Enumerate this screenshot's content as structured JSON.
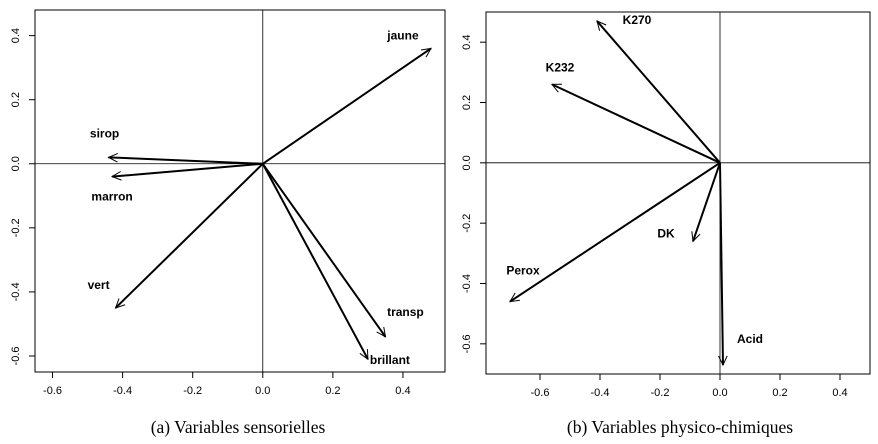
{
  "chart_data": [
    {
      "type": "vector-plot",
      "caption": "(a)  Variables sensorielles",
      "xlim": [
        -0.65,
        0.52
      ],
      "ylim": [
        -0.65,
        0.48
      ],
      "xticks": [
        -0.6,
        -0.4,
        -0.2,
        0.0,
        0.2,
        0.4
      ],
      "yticks": [
        -0.6,
        -0.4,
        -0.2,
        0.0,
        0.2,
        0.4
      ],
      "xtick_labels": [
        "-0.6",
        "-0.4",
        "-0.2",
        "0.0",
        "0.2",
        "0.4"
      ],
      "ytick_labels": [
        "-0.6",
        "-0.4",
        "-0.2",
        "0.0",
        "0.2",
        "0.4"
      ],
      "vectors": [
        {
          "label": "jaune",
          "x": 0.48,
          "y": 0.36
        },
        {
          "label": "sirop",
          "x": -0.44,
          "y": 0.02
        },
        {
          "label": "marron",
          "x": -0.43,
          "y": -0.04
        },
        {
          "label": "vert",
          "x": -0.42,
          "y": -0.45
        },
        {
          "label": "transp",
          "x": 0.35,
          "y": -0.54
        },
        {
          "label": "brillant",
          "x": 0.3,
          "y": -0.61
        }
      ]
    },
    {
      "type": "vector-plot",
      "caption": "(b)  Variables physico-chimiques",
      "xlim": [
        -0.78,
        0.5
      ],
      "ylim": [
        -0.7,
        0.5
      ],
      "xticks": [
        -0.6,
        -0.4,
        -0.2,
        0.0,
        0.2,
        0.4
      ],
      "yticks": [
        -0.6,
        -0.4,
        -0.2,
        0.0,
        0.2,
        0.4
      ],
      "xtick_labels": [
        "-0.6",
        "-0.4",
        "-0.2",
        "0.0",
        "0.2",
        "0.4"
      ],
      "ytick_labels": [
        "-0.6",
        "-0.4",
        "-0.2",
        "0.0",
        "0.2",
        "0.4"
      ],
      "vectors": [
        {
          "label": "K270",
          "x": -0.41,
          "y": 0.47
        },
        {
          "label": "K232",
          "x": -0.56,
          "y": 0.26
        },
        {
          "label": "DK",
          "x": -0.09,
          "y": -0.26
        },
        {
          "label": "Perox",
          "x": -0.7,
          "y": -0.46
        },
        {
          "label": "Acid",
          "x": 0.01,
          "y": -0.67
        }
      ]
    }
  ]
}
